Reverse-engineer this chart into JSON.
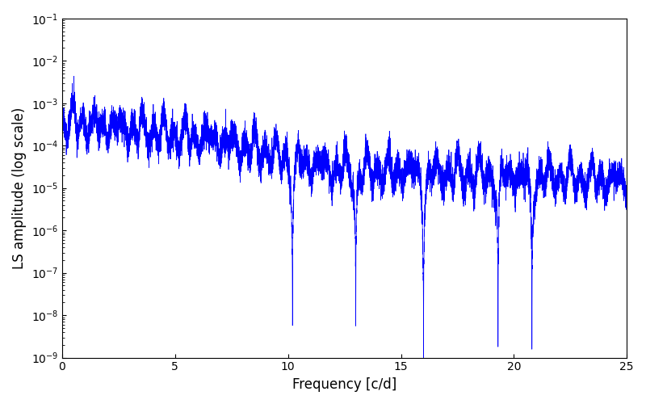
{
  "title": "",
  "xlabel": "Frequency [c/d]",
  "ylabel": "LS amplitude (log scale)",
  "line_color": "#0000ff",
  "xlim": [
    0,
    25
  ],
  "ylim_log": [
    -9,
    -1
  ],
  "figsize": [
    8.0,
    5.0
  ],
  "dpi": 100,
  "freq_max": 25.0,
  "n_points": 10000,
  "seed": 42
}
